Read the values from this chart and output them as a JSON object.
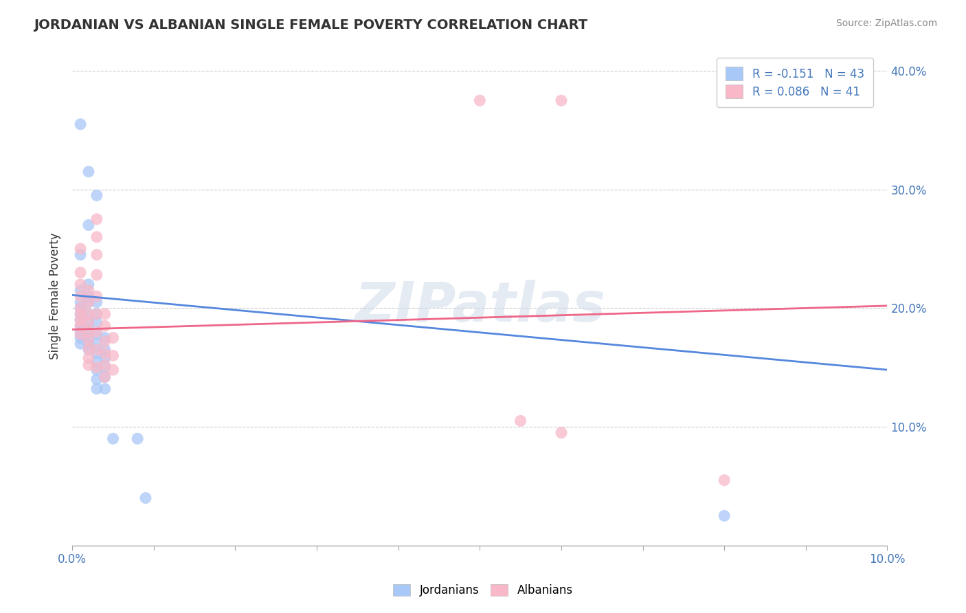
{
  "title": "JORDANIAN VS ALBANIAN SINGLE FEMALE POVERTY CORRELATION CHART",
  "source": "Source: ZipAtlas.com",
  "ylabel_label": "Single Female Poverty",
  "xmin": 0.0,
  "xmax": 0.1,
  "ymin": 0.0,
  "ymax": 0.42,
  "legend_entry1": "R = -0.151   N = 43",
  "legend_entry2": "R = 0.086   N = 41",
  "jordanian_color": "#a8c8f8",
  "albanian_color": "#f8b8c8",
  "jordanian_line_color": "#5588dd",
  "albanian_line_color": "#ee6688",
  "watermark": "ZIPatlas",
  "background_color": "#ffffff",
  "grid_color": "#cccccc",
  "jordanians_label": "Jordanians",
  "albanians_label": "Albanians",
  "jordanian_trend_x0": 0.0,
  "jordanian_trend_y0": 0.211,
  "jordanian_trend_x1": 0.1,
  "jordanian_trend_y1": 0.148,
  "albanian_trend_x0": 0.0,
  "albanian_trend_y0": 0.182,
  "albanian_trend_x1": 0.1,
  "albanian_trend_y1": 0.202,
  "jordanian_points": [
    [
      0.001,
      0.355
    ],
    [
      0.002,
      0.315
    ],
    [
      0.003,
      0.295
    ],
    [
      0.001,
      0.245
    ],
    [
      0.002,
      0.27
    ],
    [
      0.001,
      0.215
    ],
    [
      0.001,
      0.205
    ],
    [
      0.001,
      0.2
    ],
    [
      0.001,
      0.195
    ],
    [
      0.001,
      0.19
    ],
    [
      0.001,
      0.185
    ],
    [
      0.001,
      0.18
    ],
    [
      0.001,
      0.175
    ],
    [
      0.001,
      0.17
    ],
    [
      0.002,
      0.22
    ],
    [
      0.002,
      0.21
    ],
    [
      0.002,
      0.205
    ],
    [
      0.002,
      0.195
    ],
    [
      0.002,
      0.188
    ],
    [
      0.002,
      0.182
    ],
    [
      0.002,
      0.175
    ],
    [
      0.002,
      0.17
    ],
    [
      0.002,
      0.165
    ],
    [
      0.003,
      0.205
    ],
    [
      0.003,
      0.195
    ],
    [
      0.003,
      0.188
    ],
    [
      0.003,
      0.178
    ],
    [
      0.003,
      0.17
    ],
    [
      0.003,
      0.162
    ],
    [
      0.003,
      0.155
    ],
    [
      0.003,
      0.148
    ],
    [
      0.003,
      0.14
    ],
    [
      0.003,
      0.132
    ],
    [
      0.004,
      0.175
    ],
    [
      0.004,
      0.165
    ],
    [
      0.004,
      0.158
    ],
    [
      0.004,
      0.15
    ],
    [
      0.004,
      0.142
    ],
    [
      0.004,
      0.132
    ],
    [
      0.005,
      0.09
    ],
    [
      0.008,
      0.09
    ],
    [
      0.009,
      0.04
    ],
    [
      0.08,
      0.025
    ]
  ],
  "albanian_points": [
    [
      0.001,
      0.25
    ],
    [
      0.001,
      0.23
    ],
    [
      0.001,
      0.22
    ],
    [
      0.001,
      0.21
    ],
    [
      0.001,
      0.2
    ],
    [
      0.001,
      0.195
    ],
    [
      0.001,
      0.19
    ],
    [
      0.001,
      0.185
    ],
    [
      0.001,
      0.178
    ],
    [
      0.002,
      0.215
    ],
    [
      0.002,
      0.205
    ],
    [
      0.002,
      0.195
    ],
    [
      0.002,
      0.188
    ],
    [
      0.002,
      0.18
    ],
    [
      0.002,
      0.173
    ],
    [
      0.002,
      0.166
    ],
    [
      0.002,
      0.158
    ],
    [
      0.002,
      0.152
    ],
    [
      0.003,
      0.275
    ],
    [
      0.003,
      0.26
    ],
    [
      0.003,
      0.245
    ],
    [
      0.003,
      0.228
    ],
    [
      0.003,
      0.21
    ],
    [
      0.003,
      0.195
    ],
    [
      0.003,
      0.18
    ],
    [
      0.003,
      0.165
    ],
    [
      0.003,
      0.15
    ],
    [
      0.004,
      0.195
    ],
    [
      0.004,
      0.185
    ],
    [
      0.004,
      0.172
    ],
    [
      0.004,
      0.162
    ],
    [
      0.004,
      0.152
    ],
    [
      0.004,
      0.142
    ],
    [
      0.005,
      0.175
    ],
    [
      0.005,
      0.16
    ],
    [
      0.005,
      0.148
    ],
    [
      0.05,
      0.375
    ],
    [
      0.06,
      0.375
    ],
    [
      0.055,
      0.105
    ],
    [
      0.06,
      0.095
    ],
    [
      0.08,
      0.055
    ]
  ]
}
